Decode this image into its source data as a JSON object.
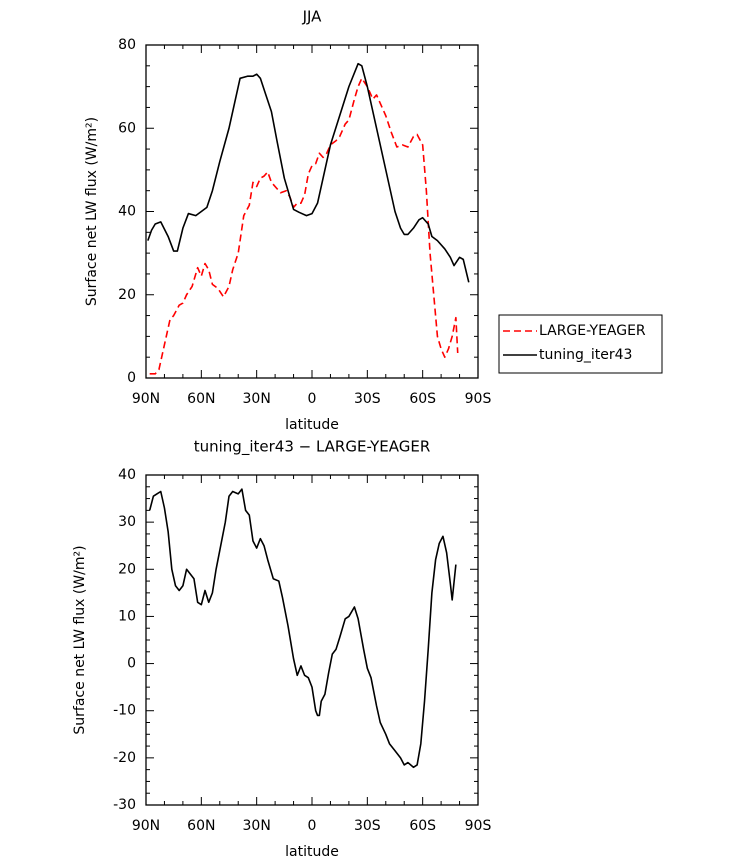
{
  "chart_data": [
    {
      "type": "line",
      "title": "JJA",
      "xlabel": "latitude",
      "ylabel": "Surface net LW flux (W/m²)",
      "xlim": [
        90,
        -90
      ],
      "ylim": [
        0,
        80
      ],
      "xticks": [
        {
          "value": 90,
          "label": "90N"
        },
        {
          "value": 60,
          "label": "60N"
        },
        {
          "value": 30,
          "label": "30N"
        },
        0,
        {
          "value": -30,
          "label": "30S"
        },
        {
          "value": -60,
          "label": "60S"
        },
        {
          "value": -90,
          "label": "90S"
        }
      ],
      "yticks": [
        0,
        20,
        40,
        60,
        80
      ],
      "legend": "outside-right",
      "series": [
        {
          "name": "LARGE-YEAGER",
          "color": "#ff0000",
          "linestyle": "dashed",
          "x": [
            88,
            85,
            83,
            80,
            77,
            75,
            72,
            70,
            68,
            65,
            62,
            60,
            58,
            56,
            54,
            51,
            48,
            45,
            43,
            40,
            37,
            34,
            32,
            30,
            28,
            26,
            24,
            22,
            19,
            17,
            14,
            12,
            10,
            8,
            6,
            4,
            2,
            0,
            -2,
            -4,
            -6,
            -8,
            -10,
            -13,
            -15,
            -18,
            -20,
            -23,
            -25,
            -27,
            -30,
            -33,
            -35,
            -38,
            -40,
            -43,
            -46,
            -49,
            -52,
            -55,
            -57,
            -60,
            -62,
            -64,
            -66,
            -68,
            -70,
            -72,
            -74,
            -76,
            -78,
            -79
          ],
          "values": [
            1,
            1,
            2,
            8,
            14,
            15,
            17.5,
            18,
            20,
            22,
            26.5,
            24.5,
            27.5,
            26,
            22.5,
            21.5,
            19.5,
            22,
            26,
            30,
            39,
            41.5,
            47,
            46,
            48,
            48.5,
            49.5,
            47,
            45.5,
            44.5,
            45,
            43.5,
            41,
            42,
            42,
            44,
            49,
            51,
            51.5,
            54,
            53,
            54,
            56,
            57,
            58,
            61,
            62,
            67,
            70,
            72,
            70,
            67,
            68,
            65,
            63,
            59,
            55.5,
            56,
            55.5,
            58,
            58.5,
            56,
            45,
            30,
            20,
            10,
            7,
            5,
            7,
            10,
            14.5,
            6
          ]
        },
        {
          "name": "tuning_iter43",
          "color": "#000000",
          "linestyle": "solid",
          "x": [
            89,
            87,
            85,
            82,
            78,
            75,
            73,
            70,
            67,
            63,
            60,
            57,
            54,
            50,
            45,
            42,
            39,
            35,
            32,
            30,
            28,
            25,
            22,
            19,
            15,
            10,
            7,
            3,
            0,
            -3,
            -6,
            -10,
            -15,
            -20,
            -25,
            -27,
            -30,
            -35,
            -40,
            -45,
            -48,
            -50,
            -52,
            -55,
            -58,
            -60,
            -63,
            -65,
            -68,
            -72,
            -75,
            -77,
            -80,
            -82,
            -85
          ],
          "values": [
            33,
            35.5,
            37,
            37.5,
            34,
            30.5,
            30.5,
            36,
            39.5,
            39,
            40,
            41,
            45,
            52,
            60,
            66,
            72,
            72.5,
            72.5,
            73,
            72,
            68,
            64,
            57,
            48,
            40.5,
            39.8,
            39,
            39.5,
            42,
            48,
            56,
            63,
            70,
            75.5,
            75,
            70,
            60,
            50,
            40,
            36,
            34.5,
            34.5,
            36,
            38,
            38.5,
            37,
            34,
            33,
            31,
            29,
            27,
            29,
            28.5,
            23
          ]
        }
      ]
    },
    {
      "type": "line",
      "title": "tuning_iter43 − LARGE-YEAGER",
      "xlabel": "latitude",
      "ylabel": "Surface net LW flux (W/m²)",
      "xlim": [
        90,
        -90
      ],
      "ylim": [
        -30,
        40
      ],
      "xticks": [
        {
          "value": 90,
          "label": "90N"
        },
        {
          "value": 60,
          "label": "60N"
        },
        {
          "value": 30,
          "label": "30N"
        },
        0,
        {
          "value": -30,
          "label": "30S"
        },
        {
          "value": -60,
          "label": "60S"
        },
        {
          "value": -90,
          "label": "90S"
        }
      ],
      "yticks": [
        -30,
        -20,
        -10,
        0,
        10,
        20,
        30,
        40
      ],
      "series": [
        {
          "color": "#000000",
          "linestyle": "solid",
          "x": [
            88,
            86,
            84,
            82,
            80,
            78,
            76,
            74,
            72,
            70,
            68,
            66,
            64,
            62,
            60,
            58,
            56,
            54,
            52,
            50,
            47,
            45,
            43,
            40,
            38,
            36,
            34,
            32,
            30,
            28,
            26,
            24,
            21,
            18,
            16,
            13,
            10,
            8,
            6,
            4,
            2,
            0,
            -2,
            -3,
            -4,
            -5,
            -7,
            -9,
            -11,
            -13,
            -15,
            -18,
            -20,
            -23,
            -25,
            -28,
            -30,
            -32,
            -35,
            -37,
            -40,
            -42,
            -45,
            -48,
            -50,
            -52,
            -55,
            -57,
            -59,
            -61,
            -63,
            -65,
            -67,
            -69,
            -71,
            -73,
            -75,
            -76,
            -78
          ],
          "values": [
            32.5,
            35.5,
            36,
            36.5,
            33,
            28,
            20,
            16.5,
            15.5,
            16.5,
            20,
            19,
            18,
            13,
            12.5,
            15.5,
            13,
            15,
            20,
            24,
            30,
            35.5,
            36.5,
            36,
            37,
            32.5,
            31.5,
            26,
            24.5,
            26.5,
            25,
            22,
            18,
            17.5,
            14,
            8,
            1,
            -2.5,
            -0.5,
            -2.5,
            -3,
            -5,
            -10,
            -11,
            -11,
            -8,
            -6.5,
            -2,
            2,
            3,
            5.5,
            9.5,
            10,
            12,
            9.5,
            3,
            -1,
            -3,
            -9,
            -12.5,
            -15,
            -17,
            -18.5,
            -20,
            -21.5,
            -21,
            -22,
            -21.5,
            -17,
            -8,
            3,
            15,
            22,
            25.5,
            27,
            23.5,
            17,
            13.5,
            21
          ]
        }
      ]
    }
  ]
}
